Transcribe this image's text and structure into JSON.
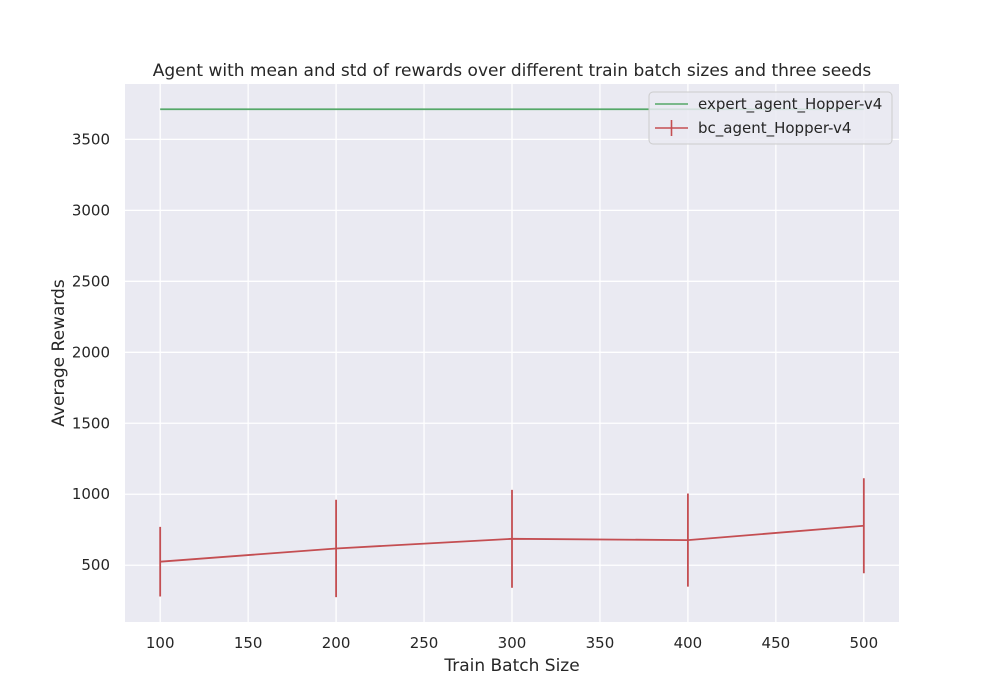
{
  "chart_data": {
    "type": "line",
    "title": "Agent with mean and std of rewards over different train batch sizes and three seeds",
    "xlabel": "Train Batch Size",
    "ylabel": "Average Rewards",
    "xlim": [
      80,
      520
    ],
    "ylim": [
      100,
      3890
    ],
    "xticks": [
      100,
      150,
      200,
      250,
      300,
      350,
      400,
      450,
      500
    ],
    "yticks": [
      500,
      1000,
      1500,
      2000,
      2500,
      3000,
      3500
    ],
    "grid": true,
    "legend_position": "top-right",
    "series": [
      {
        "name": "expert_agent_Hopper-v4",
        "color": "#55a868",
        "x": [
          100,
          200,
          300,
          400,
          500
        ],
        "y": [
          3712,
          3712,
          3712,
          3712,
          3712
        ]
      },
      {
        "name": "bc_agent_Hopper-v4",
        "color": "#c44e52",
        "x": [
          100,
          200,
          300,
          400,
          500
        ],
        "y": [
          525,
          618,
          686,
          677,
          778
        ],
        "yerr": [
          245,
          343,
          345,
          328,
          335
        ]
      }
    ]
  },
  "colors": {
    "plot_background": "#eaeaf2",
    "grid": "#ffffff",
    "text": "#262626"
  }
}
